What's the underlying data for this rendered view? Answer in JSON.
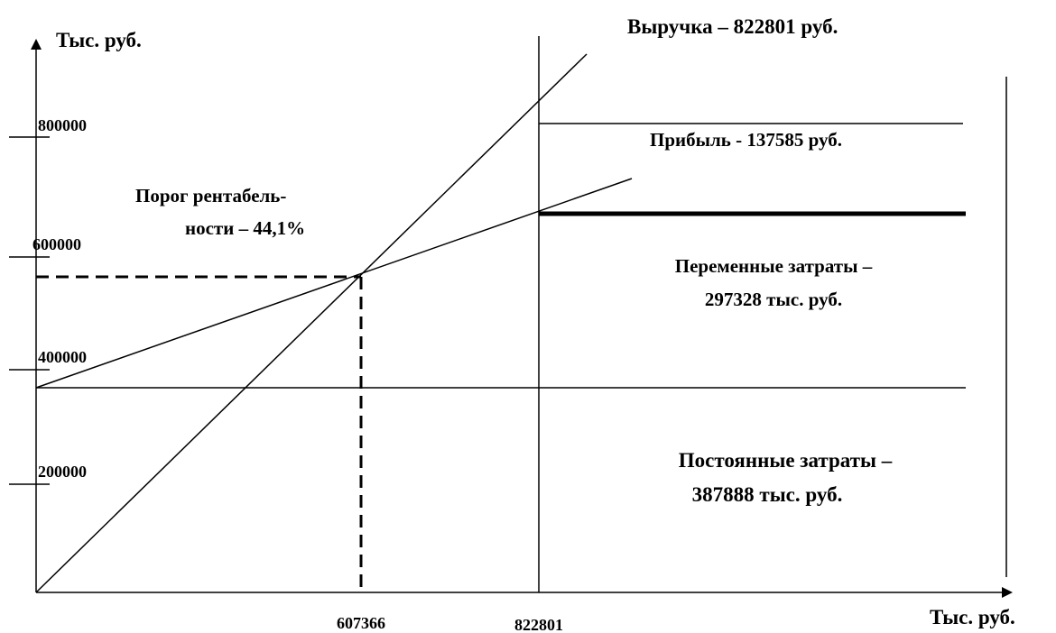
{
  "axis": {
    "y_label": "Тыс. руб.",
    "x_label": "Тыс. руб.",
    "y_ticks": [
      "800000",
      "600000",
      "400000",
      "200000"
    ],
    "x_ticks": [
      "607366",
      "822801"
    ]
  },
  "labels": {
    "revenue": "Выручка – 822801 руб.",
    "profit": "Прибыль - 137585 руб.",
    "break_even": [
      "Порог рентабель-",
      "ности – 44,1%"
    ],
    "variable_costs": [
      "Переменные затраты –",
      "297328 тыс. руб."
    ],
    "fixed_costs": [
      "Постоянные затраты –",
      "387888 тыс. руб."
    ]
  }
}
